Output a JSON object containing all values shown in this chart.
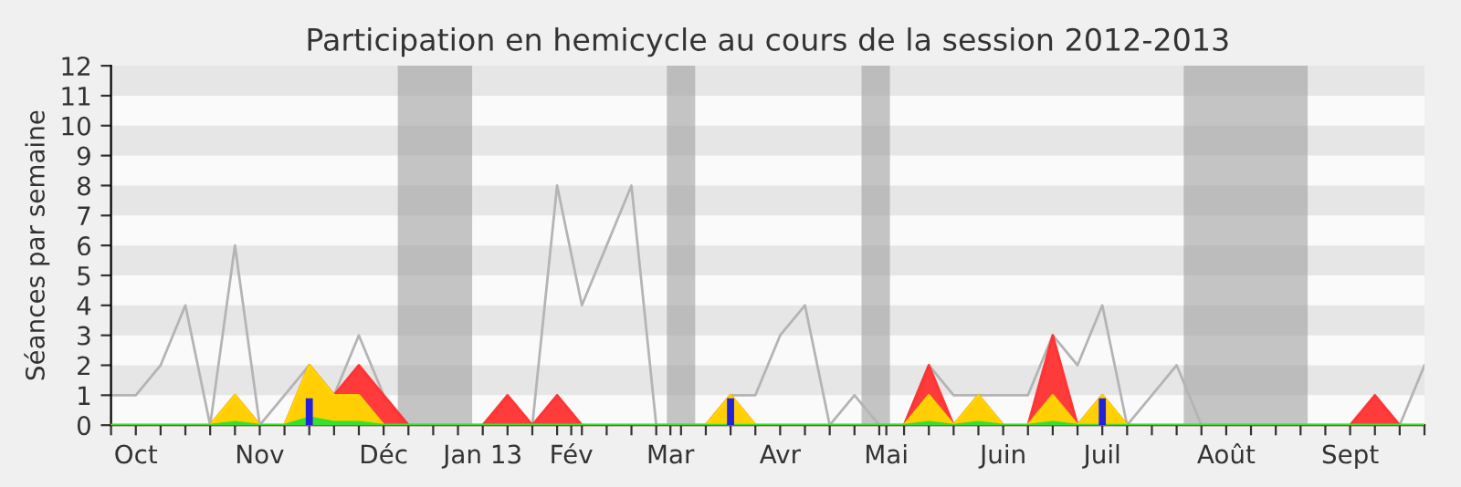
{
  "chart_data": {
    "type": "area",
    "title": "Participation en hemicycle au cours de la session 2012-2013",
    "ylabel": "Séances par semaine",
    "x": [
      "2012-09-24",
      "2012-10-01",
      "2012-10-08",
      "2012-10-15",
      "2012-10-22",
      "2012-10-29",
      "2012-11-05",
      "2012-11-12",
      "2012-11-19",
      "2012-11-26",
      "2012-12-03",
      "2012-12-10",
      "2012-12-17",
      "2012-12-24",
      "2012-12-31",
      "2013-01-07",
      "2013-01-14",
      "2013-01-21",
      "2013-01-28",
      "2013-02-04",
      "2013-02-11",
      "2013-02-18",
      "2013-02-25",
      "2013-03-04",
      "2013-03-11",
      "2013-03-18",
      "2013-03-25",
      "2013-04-01",
      "2013-04-08",
      "2013-04-15",
      "2013-04-22",
      "2013-04-29",
      "2013-05-06",
      "2013-05-13",
      "2013-05-20",
      "2013-05-27",
      "2013-06-03",
      "2013-06-10",
      "2013-06-17",
      "2013-06-24",
      "2013-07-01",
      "2013-07-08",
      "2013-07-15",
      "2013-07-22",
      "2013-07-29",
      "2013-08-05",
      "2013-08-12",
      "2013-08-19",
      "2013-08-26",
      "2013-09-02",
      "2013-09-09",
      "2013-09-16",
      "2013-09-23",
      "2013-09-30"
    ],
    "series": [
      {
        "type": "line",
        "color": "#b4b4b4",
        "values": [
          1,
          1,
          2,
          4,
          0,
          6,
          0,
          1,
          2,
          1,
          3,
          1,
          0,
          0,
          0,
          0,
          null,
          0,
          8,
          4,
          6,
          8,
          0,
          0,
          0,
          1,
          1,
          3,
          4,
          0,
          1,
          0,
          0,
          2,
          1,
          1,
          1,
          1,
          3,
          2,
          4,
          0,
          1,
          2,
          0,
          0,
          0,
          0,
          0,
          0,
          0,
          null,
          0,
          2
        ]
      },
      {
        "color": "#ff3030",
        "values": [
          0,
          0,
          0,
          0,
          0,
          1,
          0,
          0,
          2,
          1,
          2,
          1,
          0,
          0,
          0,
          0,
          1,
          0,
          1,
          0,
          0,
          0,
          0,
          0,
          0,
          1,
          0,
          0,
          0,
          0,
          0,
          0,
          0,
          2,
          0,
          1,
          0,
          0,
          3,
          0,
          1,
          0,
          0,
          0,
          0,
          0,
          0,
          0,
          0,
          0,
          0,
          1,
          0,
          0
        ]
      },
      {
        "color": "#ffd700",
        "values": [
          0,
          0,
          0,
          0,
          0,
          1,
          0,
          0,
          2,
          1,
          1,
          0,
          0,
          0,
          0,
          0,
          0,
          0,
          0,
          0,
          0,
          0,
          0,
          0,
          0,
          1,
          0,
          0,
          0,
          0,
          0,
          0,
          0,
          1,
          0,
          1,
          0,
          0,
          1,
          0,
          1,
          0,
          0,
          0,
          0,
          0,
          0,
          0,
          0,
          0,
          0,
          0,
          0,
          0
        ]
      },
      {
        "color": "#30e030",
        "values": [
          0,
          0,
          0,
          0,
          0,
          0.1,
          0,
          0,
          0.25,
          0.1,
          0.1,
          0,
          0,
          0,
          0,
          0,
          0,
          0,
          0,
          0,
          0,
          0,
          0,
          0,
          0,
          0,
          0,
          0,
          0,
          0,
          0,
          0,
          0,
          0.1,
          0,
          0.1,
          0,
          0,
          0.1,
          0,
          0,
          0,
          0,
          0,
          0,
          0,
          0,
          0,
          0,
          0,
          0,
          0,
          0,
          0
        ]
      },
      {
        "type": "bar",
        "color": "#2222dd",
        "values": [
          0,
          0,
          0,
          0,
          0,
          0,
          0,
          0,
          0.9,
          0,
          0,
          0,
          0,
          0,
          0,
          0,
          0,
          0,
          0,
          0,
          0,
          0,
          0,
          0,
          0,
          0.9,
          0,
          0,
          0,
          0,
          0,
          0,
          0,
          0,
          0,
          0,
          0,
          0,
          0,
          0,
          0.9,
          0,
          0,
          0,
          0,
          0,
          0,
          0,
          0,
          0,
          0,
          0,
          0,
          0
        ]
      }
    ],
    "bands": [
      {
        "axis": "x",
        "from": "2012-12-14",
        "to": "2013-01-04",
        "color": "#a0a0a0"
      },
      {
        "axis": "x",
        "from": "2013-02-28",
        "to": "2013-03-08",
        "color": "#a0a0a0"
      },
      {
        "axis": "x",
        "from": "2013-04-24",
        "to": "2013-05-02",
        "color": "#a0a0a0"
      },
      {
        "axis": "x",
        "from": "2013-07-24",
        "to": "2013-08-28",
        "color": "#a0a0a0"
      }
    ],
    "xlim": [
      "2012-09-24",
      "2013-09-30"
    ],
    "xticks": [
      {
        "value": "2012-09-24",
        "label": null
      },
      {
        "value": "2012-10-01",
        "label": "Oct"
      },
      {
        "value": "2012-10-08",
        "label": null
      },
      {
        "value": "2012-10-15",
        "label": null
      },
      {
        "value": "2012-10-22",
        "label": null
      },
      {
        "value": "2012-10-29",
        "label": null
      },
      {
        "value": "2012-11-05",
        "label": "Nov"
      },
      {
        "value": "2012-11-12",
        "label": null
      },
      {
        "value": "2012-11-19",
        "label": null
      },
      {
        "value": "2012-11-26",
        "label": null
      },
      {
        "value": "2012-12-03",
        "label": null
      },
      {
        "value": "2012-12-10",
        "label": "Déc"
      },
      {
        "value": "2012-12-17",
        "label": null
      },
      {
        "value": "2012-12-24",
        "label": null
      },
      {
        "value": "2012-12-31",
        "label": null
      },
      {
        "value": "2013-01-07",
        "label": "Jan 13"
      },
      {
        "value": "2013-01-14",
        "label": null
      },
      {
        "value": "2013-01-21",
        "label": null
      },
      {
        "value": "2013-01-28",
        "label": null
      },
      {
        "value": "2013-02-01",
        "label": "Fév"
      },
      {
        "value": "2013-02-04",
        "label": null
      },
      {
        "value": "2013-02-11",
        "label": null
      },
      {
        "value": "2013-02-18",
        "label": null
      },
      {
        "value": "2013-02-25",
        "label": null
      },
      {
        "value": "2013-03-01",
        "label": "Mar"
      },
      {
        "value": "2013-03-04",
        "label": null
      },
      {
        "value": "2013-03-11",
        "label": null
      },
      {
        "value": "2013-03-18",
        "label": null
      },
      {
        "value": "2013-03-25",
        "label": null
      },
      {
        "value": "2013-04-01",
        "label": "Avr"
      },
      {
        "value": "2013-04-08",
        "label": null
      },
      {
        "value": "2013-04-15",
        "label": null
      },
      {
        "value": "2013-04-22",
        "label": null
      },
      {
        "value": "2013-04-29",
        "label": null
      },
      {
        "value": "2013-05-01",
        "label": "Mai"
      },
      {
        "value": "2013-05-06",
        "label": null
      },
      {
        "value": "2013-05-13",
        "label": null
      },
      {
        "value": "2013-05-20",
        "label": null
      },
      {
        "value": "2013-05-27",
        "label": null
      },
      {
        "value": "2013-06-03",
        "label": "Juin"
      },
      {
        "value": "2013-06-10",
        "label": null
      },
      {
        "value": "2013-06-17",
        "label": null
      },
      {
        "value": "2013-06-24",
        "label": null
      },
      {
        "value": "2013-07-01",
        "label": "Juil"
      },
      {
        "value": "2013-07-08",
        "label": null
      },
      {
        "value": "2013-07-15",
        "label": null
      },
      {
        "value": "2013-07-22",
        "label": null
      },
      {
        "value": "2013-07-29",
        "label": null
      },
      {
        "value": "2013-08-05",
        "label": "Août"
      },
      {
        "value": "2013-08-12",
        "label": null
      },
      {
        "value": "2013-08-19",
        "label": null
      },
      {
        "value": "2013-08-26",
        "label": null
      },
      {
        "value": "2013-09-02",
        "label": null
      },
      {
        "value": "2013-09-09",
        "label": "Sept"
      },
      {
        "value": "2013-09-16",
        "label": null
      },
      {
        "value": "2013-09-23",
        "label": null
      },
      {
        "value": "2013-09-30",
        "label": null
      }
    ],
    "ylim": [
      0,
      12
    ],
    "yticks": [
      0,
      1,
      2,
      3,
      4,
      5,
      6,
      7,
      8,
      9,
      10,
      11,
      12
    ]
  }
}
